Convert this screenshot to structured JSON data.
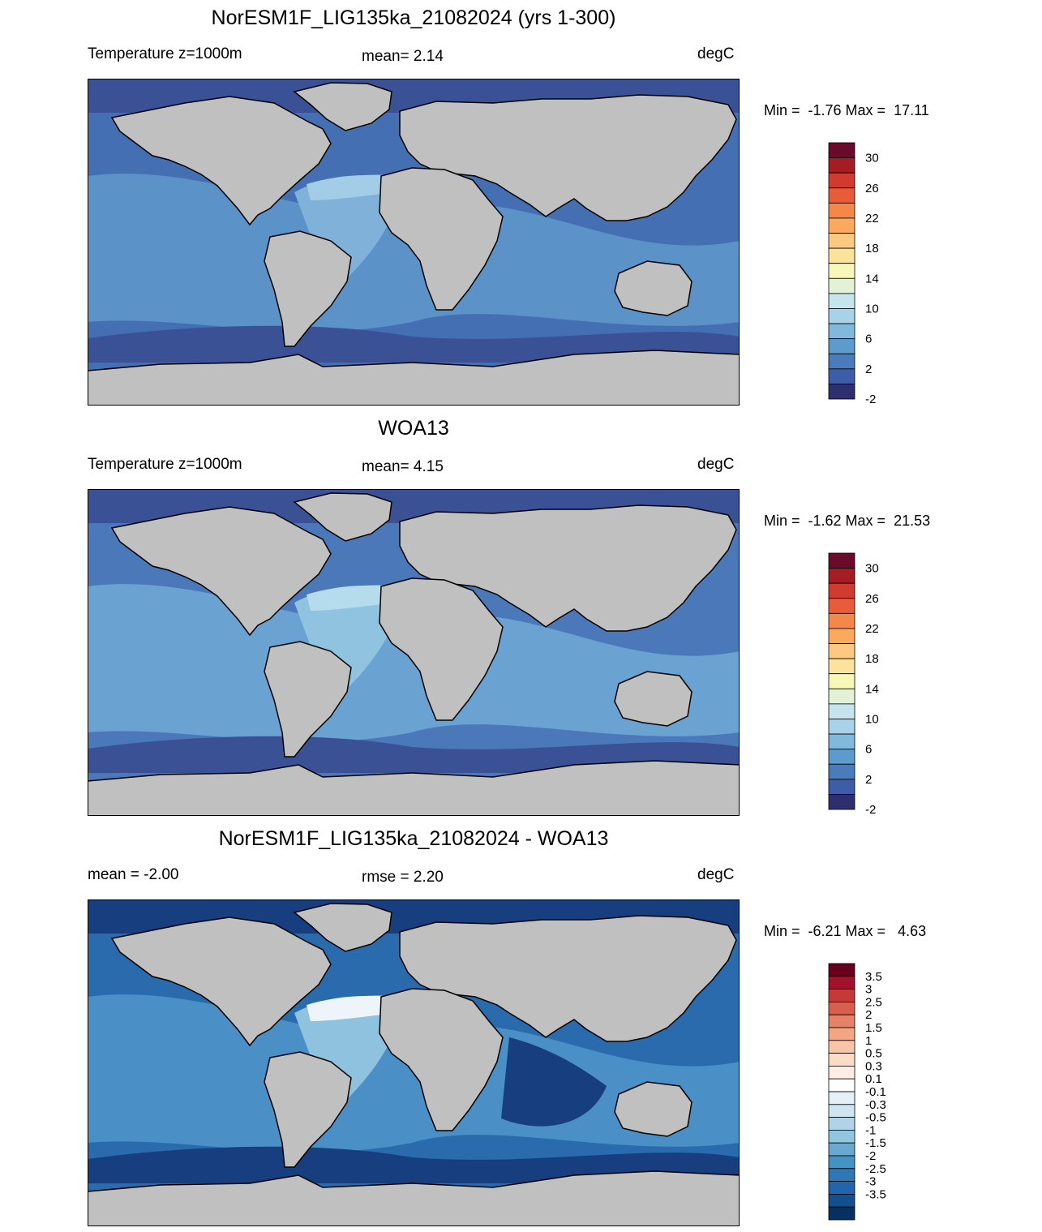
{
  "panels": [
    {
      "title": "NorESM1F_LIG135ka_21082024 (yrs 1-300)",
      "left_label": "Temperature z=1000m",
      "mid_label": "mean=   2.14",
      "units": "degC",
      "minmax": "Min =  -1.76 Max =  17.11",
      "colorbar": {
        "labels": [
          "30",
          "26",
          "22",
          "18",
          "14",
          "10",
          "6",
          "2",
          "-2"
        ],
        "colors": [
          "#6b0a2a",
          "#a61c23",
          "#d13a2e",
          "#e85c3a",
          "#f5874b",
          "#fba95f",
          "#fdc982",
          "#fbe39b",
          "#f7f7b8",
          "#e3f2d6",
          "#c6e4ee",
          "#a7d2e8",
          "#82b8db",
          "#5d9bcc",
          "#4a7cbc",
          "#3d5da8",
          "#2e2f6e"
        ]
      },
      "ocean_bands": [
        "#3b5196",
        "#4470b3",
        "#5b92c8",
        "#7fb1d9",
        "#a3cde6"
      ]
    },
    {
      "title": "WOA13",
      "left_label": "Temperature z=1000m",
      "mid_label": "mean=   4.15",
      "units": "degC",
      "minmax": "Min =  -1.62 Max =  21.53",
      "colorbar": {
        "labels": [
          "30",
          "26",
          "22",
          "18",
          "14",
          "10",
          "6",
          "2",
          "-2"
        ],
        "colors": [
          "#6b0a2a",
          "#a61c23",
          "#d13a2e",
          "#e85c3a",
          "#f5874b",
          "#fba95f",
          "#fdc982",
          "#fbe39b",
          "#f7f7b8",
          "#e3f2d6",
          "#c6e4ee",
          "#a7d2e8",
          "#82b8db",
          "#5d9bcc",
          "#4a7cbc",
          "#3d5da8",
          "#2e2f6e"
        ]
      },
      "ocean_bands": [
        "#3b5196",
        "#4a78b8",
        "#6aa3d2",
        "#8fc3e0",
        "#b5dcec"
      ]
    },
    {
      "title": "NorESM1F_LIG135ka_21082024 - WOA13",
      "left_label": "mean =  -2.00",
      "mid_label": "rmse =   2.20",
      "units": "degC",
      "minmax": "Min =  -6.21 Max =   4.63",
      "colorbar": {
        "labels": [
          "3.5",
          "3",
          "2.5",
          "2",
          "1.5",
          "1",
          "0.5",
          "0.3",
          "0.1",
          "-0.1",
          "-0.3",
          "-0.5",
          "-1",
          "-1.5",
          "-2",
          "-2.5",
          "-3",
          "-3.5"
        ],
        "colors": [
          "#67001f",
          "#a3122d",
          "#c43a3a",
          "#d6604d",
          "#e58267",
          "#f4a582",
          "#f9c4a8",
          "#fddbc7",
          "#fdeee4",
          "#ffffff",
          "#e4eff6",
          "#d1e5f0",
          "#b0d3e7",
          "#92c5de",
          "#6aa8d0",
          "#4393c3",
          "#2f78b5",
          "#2166ac",
          "#144f8f",
          "#053061"
        ]
      },
      "ocean_bands": [
        "#173f80",
        "#2a6bae",
        "#4a8fc6",
        "#8fc2df",
        "#eef5fa"
      ]
    }
  ],
  "land_color": "#c0c0c0"
}
